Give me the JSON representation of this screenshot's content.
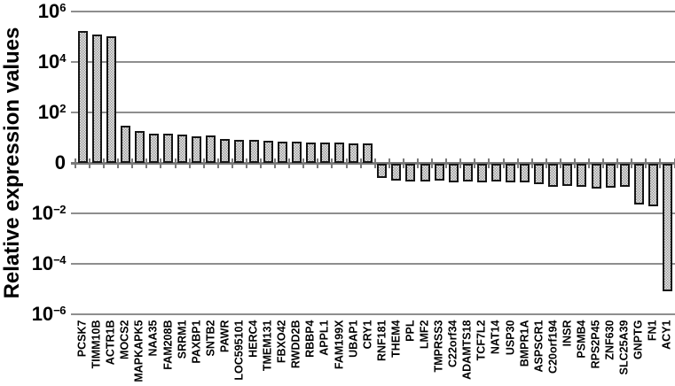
{
  "page": {
    "background": "#ffffff"
  },
  "chart_data": {
    "type": "bar",
    "title": "",
    "ylabel": "Relative expression values",
    "xlabel": "",
    "y_scale": "log10, symmetric about 1 (axis tick shown as 0)",
    "ylim": [
      "1e-6",
      "1e6"
    ],
    "grid": true,
    "legend": false,
    "yticks": [
      {
        "base": "10",
        "exp": "6"
      },
      {
        "base": "10",
        "exp": "4"
      },
      {
        "base": "10",
        "exp": "2"
      },
      {
        "base": "0",
        "exp": ""
      },
      {
        "base": "10",
        "exp": "−2"
      },
      {
        "base": "10",
        "exp": "−4"
      },
      {
        "base": "10",
        "exp": "−6"
      }
    ],
    "bars": [
      {
        "gene": "PCSK7",
        "value": 170000,
        "log10": 5.23
      },
      {
        "gene": "TIMM10B",
        "value": 126000,
        "log10": 5.1
      },
      {
        "gene": "ACTR1B",
        "value": 107000,
        "log10": 5.03
      },
      {
        "gene": "MOCS2",
        "value": 30,
        "log10": 1.48
      },
      {
        "gene": "MAPKAPK5",
        "value": 18,
        "log10": 1.25
      },
      {
        "gene": "NAA35",
        "value": 14.5,
        "log10": 1.16
      },
      {
        "gene": "FAM208B",
        "value": 14.8,
        "log10": 1.17
      },
      {
        "gene": "SRRM1",
        "value": 13,
        "log10": 1.11
      },
      {
        "gene": "PAXBP1",
        "value": 11.5,
        "log10": 1.06
      },
      {
        "gene": "SNTB2",
        "value": 12.3,
        "log10": 1.09
      },
      {
        "gene": "PAWR",
        "value": 9.1,
        "log10": 0.96
      },
      {
        "gene": "LOC595101",
        "value": 8.3,
        "log10": 0.92
      },
      {
        "gene": "HERC4",
        "value": 8.3,
        "log10": 0.92
      },
      {
        "gene": "TMEM131",
        "value": 7.4,
        "log10": 0.87
      },
      {
        "gene": "FBXO42",
        "value": 6.9,
        "log10": 0.84
      },
      {
        "gene": "RWDD2B",
        "value": 6.9,
        "log10": 0.84
      },
      {
        "gene": "RBBP4",
        "value": 6.5,
        "log10": 0.81
      },
      {
        "gene": "APPL1",
        "value": 6.6,
        "log10": 0.82
      },
      {
        "gene": "FAM199X",
        "value": 6.3,
        "log10": 0.8
      },
      {
        "gene": "UBAP1",
        "value": 5.9,
        "log10": 0.77
      },
      {
        "gene": "CRY1",
        "value": 5.8,
        "log10": 0.76
      },
      {
        "gene": "RNF181",
        "value": 0.28,
        "log10": -0.56
      },
      {
        "gene": "THEM4",
        "value": 0.22,
        "log10": -0.66
      },
      {
        "gene": "PPL",
        "value": 0.19,
        "log10": -0.71
      },
      {
        "gene": "LMF2",
        "value": 0.2,
        "log10": -0.69
      },
      {
        "gene": "TMPRSS3",
        "value": 0.21,
        "log10": -0.68
      },
      {
        "gene": "C22orf34",
        "value": 0.18,
        "log10": -0.74
      },
      {
        "gene": "ADAMTS18",
        "value": 0.2,
        "log10": -0.69
      },
      {
        "gene": "TCF7L2",
        "value": 0.19,
        "log10": -0.73
      },
      {
        "gene": "NAT14",
        "value": 0.19,
        "log10": -0.71
      },
      {
        "gene": "USP30",
        "value": 0.18,
        "log10": -0.75
      },
      {
        "gene": "BMPR1A",
        "value": 0.18,
        "log10": -0.74
      },
      {
        "gene": "ASPSCR1",
        "value": 0.155,
        "log10": -0.81
      },
      {
        "gene": "C20orf194",
        "value": 0.125,
        "log10": -0.9
      },
      {
        "gene": "INSR",
        "value": 0.135,
        "log10": -0.87
      },
      {
        "gene": "PSMB4",
        "value": 0.12,
        "log10": -0.92
      },
      {
        "gene": "RPS2P45",
        "value": 0.105,
        "log10": -0.98
      },
      {
        "gene": "ZNF630",
        "value": 0.11,
        "log10": -0.95
      },
      {
        "gene": "SLC25A39",
        "value": 0.12,
        "log10": -0.91
      },
      {
        "gene": "GNPTG",
        "value": 0.025,
        "log10": -1.61
      },
      {
        "gene": "FN1",
        "value": 0.021,
        "log10": -1.67
      },
      {
        "gene": "ACY1",
        "value": 8.9e-06,
        "log10": -5.05
      }
    ]
  },
  "style": {
    "bar_fill_dark": "#989898",
    "bar_fill_light": "#ebebeb",
    "bar_border": "#161616",
    "grid_color": "#8e8e8e",
    "axis_color": "#7a7a7a",
    "text_color": "#000000"
  }
}
